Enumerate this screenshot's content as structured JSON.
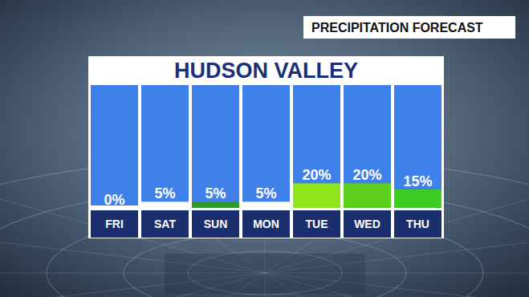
{
  "chart_data": {
    "type": "bar",
    "title": "HUDSON VALLEY",
    "subtitle": "PRECIPITATION FORECAST",
    "categories": [
      "FRI",
      "SAT",
      "SUN",
      "MON",
      "TUE",
      "WED",
      "THU"
    ],
    "values": [
      0,
      5,
      5,
      5,
      20,
      20,
      15
    ],
    "value_labels": [
      "0%",
      "5%",
      "5%",
      "5%",
      "20%",
      "20%",
      "15%"
    ],
    "colors": [
      "#ffffff",
      "#ffffff",
      "#2e9a2a",
      "#ffffff",
      "#8fe61a",
      "#5ccf1c",
      "#3fcc22"
    ],
    "ylim": [
      0,
      100
    ],
    "grid": false,
    "data_labels": true,
    "tick_labels": "x"
  }
}
